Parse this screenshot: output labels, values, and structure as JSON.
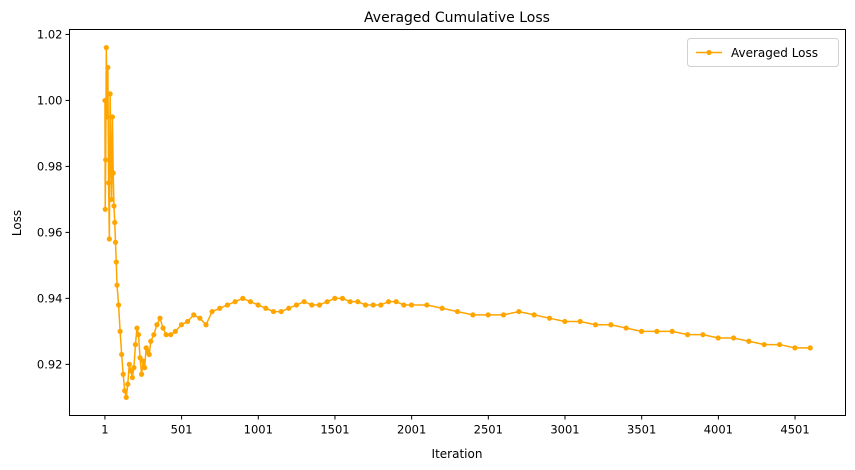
{
  "chart_data": {
    "type": "line",
    "title": "Averaged Cumulative Loss",
    "xlabel": "Iteration",
    "ylabel": "Loss",
    "xlim": [
      -230,
      4830
    ],
    "ylim": [
      0.9045,
      1.0215
    ],
    "xticks": [
      1,
      501,
      1001,
      1501,
      2001,
      2501,
      3001,
      3501,
      4001,
      4501
    ],
    "yticks": [
      0.92,
      0.94,
      0.96,
      0.98,
      1.0,
      1.02
    ],
    "ytick_labels": [
      "0.92",
      "0.94",
      "0.96",
      "0.98",
      "1.00",
      "1.02"
    ],
    "grid": false,
    "legend_position": "top-right",
    "marker": "circle",
    "series": [
      {
        "name": "Averaged Loss",
        "color": "#FFA500",
        "x": [
          1,
          3,
          6,
          10,
          15,
          20,
          25,
          30,
          35,
          40,
          45,
          50,
          55,
          60,
          65,
          70,
          75,
          80,
          90,
          100,
          110,
          120,
          130,
          140,
          150,
          160,
          170,
          180,
          190,
          200,
          210,
          220,
          230,
          240,
          250,
          260,
          270,
          280,
          290,
          300,
          320,
          340,
          360,
          380,
          400,
          430,
          460,
          500,
          540,
          580,
          620,
          660,
          700,
          750,
          800,
          850,
          900,
          950,
          1000,
          1050,
          1100,
          1150,
          1200,
          1250,
          1300,
          1350,
          1400,
          1450,
          1500,
          1550,
          1600,
          1650,
          1700,
          1750,
          1800,
          1850,
          1900,
          1950,
          2000,
          2100,
          2200,
          2300,
          2400,
          2500,
          2600,
          2700,
          2800,
          2900,
          3000,
          3100,
          3200,
          3300,
          3400,
          3500,
          3600,
          3700,
          3800,
          3900,
          4000,
          4100,
          4200,
          4300,
          4400,
          4500,
          4600
        ],
        "values": [
          1.0,
          0.967,
          0.982,
          1.016,
          0.995,
          1.01,
          0.975,
          0.958,
          1.002,
          0.985,
          0.97,
          0.995,
          0.978,
          0.968,
          0.963,
          0.957,
          0.951,
          0.944,
          0.938,
          0.93,
          0.923,
          0.917,
          0.912,
          0.91,
          0.914,
          0.92,
          0.918,
          0.916,
          0.919,
          0.926,
          0.931,
          0.929,
          0.922,
          0.917,
          0.921,
          0.919,
          0.925,
          0.924,
          0.923,
          0.927,
          0.929,
          0.932,
          0.934,
          0.931,
          0.929,
          0.929,
          0.93,
          0.932,
          0.933,
          0.935,
          0.934,
          0.932,
          0.936,
          0.937,
          0.938,
          0.939,
          0.94,
          0.939,
          0.938,
          0.937,
          0.936,
          0.936,
          0.937,
          0.938,
          0.939,
          0.938,
          0.938,
          0.939,
          0.94,
          0.94,
          0.939,
          0.939,
          0.938,
          0.938,
          0.938,
          0.939,
          0.939,
          0.938,
          0.938,
          0.938,
          0.937,
          0.936,
          0.935,
          0.935,
          0.935,
          0.936,
          0.935,
          0.934,
          0.933,
          0.933,
          0.932,
          0.932,
          0.931,
          0.93,
          0.93,
          0.93,
          0.929,
          0.929,
          0.928,
          0.928,
          0.927,
          0.926,
          0.926,
          0.925,
          0.925
        ]
      }
    ]
  }
}
